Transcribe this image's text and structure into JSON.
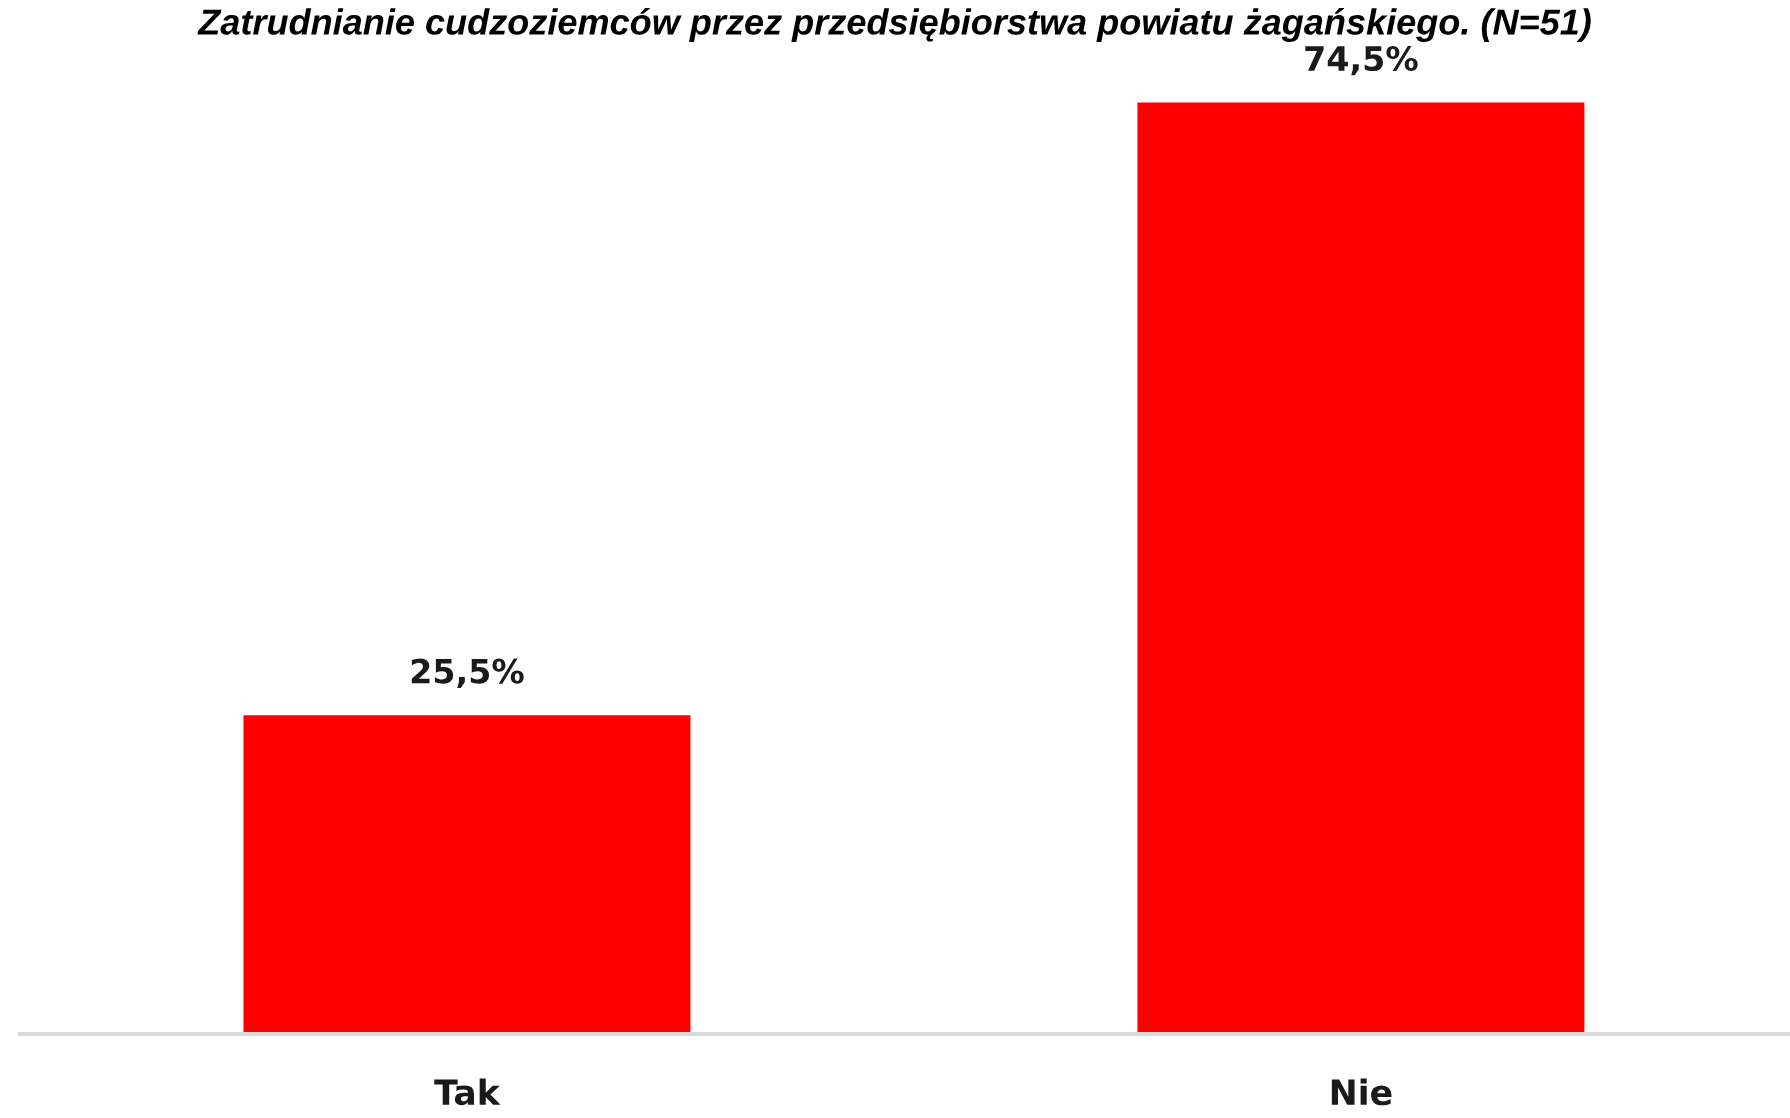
{
  "chart_data": {
    "type": "bar",
    "title": "Zatrudnianie cudzoziemców przez przedsiębiorstwa powiatu żagańskiego. (N=51)",
    "categories": [
      "Tak",
      "Nie"
    ],
    "values": [
      25.5,
      74.5
    ],
    "color": "#ff0000",
    "value_labels": [
      "25,5%",
      "74,5%"
    ],
    "tick_labels": "x"
  }
}
